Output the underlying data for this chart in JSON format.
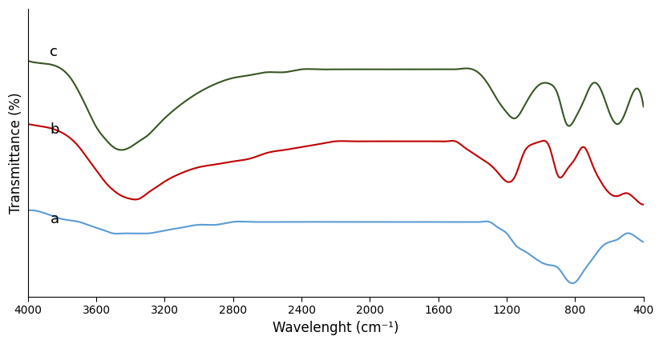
{
  "title": "",
  "xlabel": "Wavelenght (cm⁻¹)",
  "ylabel": "Transmittance (%)",
  "xlim": [
    4000,
    400
  ],
  "background_color": "#ffffff",
  "line_colors": {
    "a": "#5b9bd5",
    "b": "#c00000",
    "c": "#375623"
  },
  "labels": {
    "a": "a",
    "b": "b",
    "c": "c"
  },
  "label_positions": {
    "a": [
      3870,
      0.27
    ],
    "b": [
      3870,
      0.58
    ],
    "c": [
      3870,
      0.85
    ]
  },
  "curve_a": {
    "x": [
      4000,
      3900,
      3800,
      3700,
      3650,
      3600,
      3550,
      3500,
      3450,
      3400,
      3350,
      3300,
      3200,
      3100,
      3000,
      2900,
      2800,
      2700,
      2600,
      2500,
      2400,
      2300,
      2200,
      2100,
      2000,
      1900,
      1800,
      1700,
      1650,
      1600,
      1550,
      1500,
      1450,
      1400,
      1350,
      1300,
      1250,
      1200,
      1150,
      1100,
      1050,
      1000,
      950,
      900,
      850,
      800,
      750,
      700,
      650,
      600,
      550,
      500,
      450,
      400
    ],
    "y": [
      0.3,
      0.29,
      0.27,
      0.26,
      0.25,
      0.24,
      0.23,
      0.22,
      0.22,
      0.22,
      0.22,
      0.22,
      0.23,
      0.24,
      0.25,
      0.25,
      0.26,
      0.26,
      0.26,
      0.26,
      0.26,
      0.26,
      0.26,
      0.26,
      0.26,
      0.26,
      0.26,
      0.26,
      0.26,
      0.26,
      0.26,
      0.26,
      0.26,
      0.26,
      0.26,
      0.26,
      0.24,
      0.22,
      0.18,
      0.16,
      0.14,
      0.12,
      0.11,
      0.1,
      0.06,
      0.05,
      0.09,
      0.13,
      0.17,
      0.19,
      0.2,
      0.22,
      0.21,
      0.19
    ]
  },
  "curve_b": {
    "x": [
      4000,
      3900,
      3800,
      3750,
      3700,
      3650,
      3600,
      3550,
      3500,
      3450,
      3400,
      3350,
      3300,
      3250,
      3200,
      3100,
      3000,
      2900,
      2800,
      2700,
      2600,
      2500,
      2400,
      2300,
      2200,
      2100,
      2000,
      1900,
      1800,
      1750,
      1700,
      1650,
      1600,
      1550,
      1500,
      1450,
      1400,
      1350,
      1300,
      1250,
      1200,
      1150,
      1100,
      1050,
      1000,
      950,
      900,
      850,
      800,
      750,
      700,
      650,
      600,
      550,
      500,
      450,
      400
    ],
    "y": [
      0.6,
      0.59,
      0.57,
      0.55,
      0.52,
      0.48,
      0.44,
      0.4,
      0.37,
      0.35,
      0.34,
      0.34,
      0.36,
      0.38,
      0.4,
      0.43,
      0.45,
      0.46,
      0.47,
      0.48,
      0.5,
      0.51,
      0.52,
      0.53,
      0.54,
      0.54,
      0.54,
      0.54,
      0.54,
      0.54,
      0.54,
      0.54,
      0.54,
      0.54,
      0.54,
      0.52,
      0.5,
      0.48,
      0.46,
      0.43,
      0.4,
      0.42,
      0.5,
      0.53,
      0.54,
      0.52,
      0.42,
      0.44,
      0.48,
      0.52,
      0.46,
      0.4,
      0.36,
      0.35,
      0.36,
      0.34,
      0.32
    ]
  },
  "curve_c": {
    "x": [
      4000,
      3900,
      3800,
      3750,
      3700,
      3650,
      3600,
      3550,
      3500,
      3450,
      3400,
      3350,
      3300,
      3250,
      3200,
      3100,
      3000,
      2900,
      2800,
      2700,
      2600,
      2500,
      2400,
      2300,
      2200,
      2100,
      2000,
      1900,
      1800,
      1750,
      1700,
      1650,
      1600,
      1550,
      1500,
      1400,
      1350,
      1300,
      1250,
      1200,
      1150,
      1100,
      1050,
      1000,
      950,
      900,
      850,
      800,
      750,
      700,
      650,
      600,
      550,
      500,
      450,
      400
    ],
    "y": [
      0.82,
      0.81,
      0.79,
      0.76,
      0.71,
      0.65,
      0.59,
      0.55,
      0.52,
      0.51,
      0.52,
      0.54,
      0.56,
      0.59,
      0.62,
      0.67,
      0.71,
      0.74,
      0.76,
      0.77,
      0.78,
      0.78,
      0.79,
      0.79,
      0.79,
      0.79,
      0.79,
      0.79,
      0.79,
      0.79,
      0.79,
      0.79,
      0.79,
      0.79,
      0.79,
      0.79,
      0.77,
      0.73,
      0.68,
      0.64,
      0.62,
      0.66,
      0.71,
      0.74,
      0.74,
      0.7,
      0.6,
      0.62,
      0.68,
      0.74,
      0.72,
      0.64,
      0.6,
      0.65,
      0.72,
      0.66
    ]
  },
  "xticks": [
    4000,
    3600,
    3200,
    2800,
    2400,
    2000,
    1600,
    1200,
    800,
    400
  ],
  "linewidth": 1.5
}
